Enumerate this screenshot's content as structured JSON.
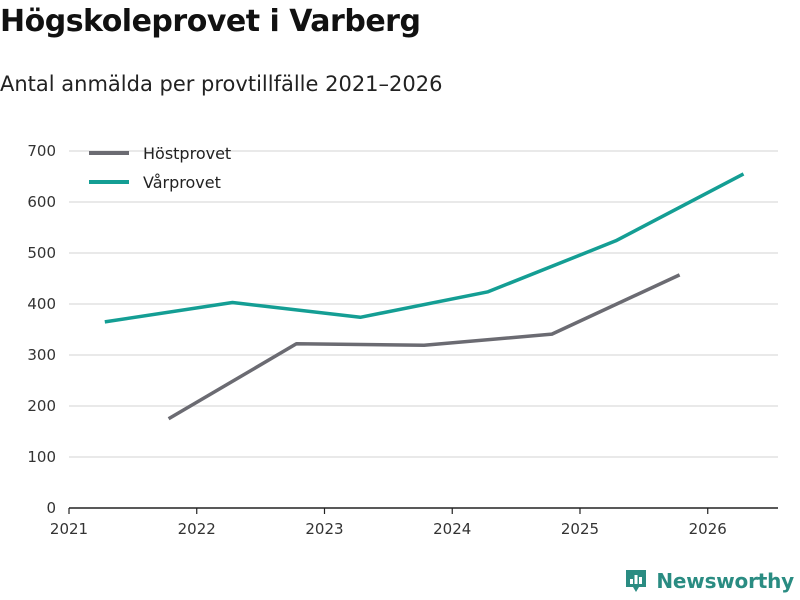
{
  "chart_data": {
    "type": "line",
    "title": "Högskoleprovet i Varberg",
    "subtitle": "Antal anmälda per provtillfälle 2021–2026",
    "xlabel": "",
    "ylabel": "",
    "xlim": [
      2021,
      2026.55
    ],
    "ylim": [
      0,
      700
    ],
    "x_ticks": [
      "2021",
      "2022",
      "2023",
      "2024",
      "2025",
      "2026"
    ],
    "y_ticks": [
      "0",
      "100",
      "200",
      "300",
      "400",
      "500",
      "600",
      "700"
    ],
    "grid": true,
    "legend_position": "top-left",
    "series": [
      {
        "name": "Höstprovet",
        "color": "#6b6b72",
        "x": [
          2021.78,
          2022.78,
          2023.78,
          2024.78,
          2025.78
        ],
        "values": [
          175,
          322,
          319,
          341,
          457
        ]
      },
      {
        "name": "Vårprovet",
        "color": "#149e94",
        "x": [
          2021.28,
          2022.28,
          2023.28,
          2024.28,
          2025.28,
          2026.28
        ],
        "values": [
          365,
          403,
          374,
          424,
          524,
          655
        ]
      }
    ]
  },
  "brand": {
    "name": "Newsworthy",
    "icon": "newsworthy-logo-icon",
    "color": "#2a8c82"
  }
}
